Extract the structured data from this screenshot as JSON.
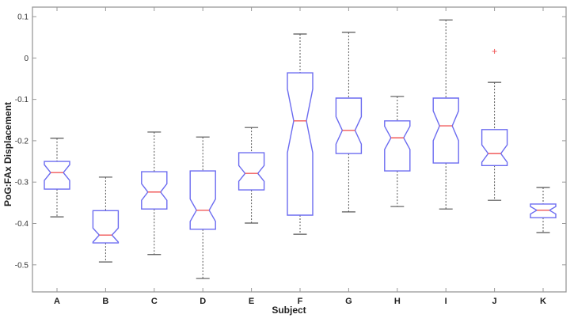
{
  "chart_data": {
    "type": "box",
    "subtype": "notched-boxplot",
    "title": "",
    "xlabel": "Subject",
    "ylabel": "PoG:FAx Displacement",
    "ylim": [
      -0.57,
      0.12
    ],
    "yticks": [
      0.1,
      0,
      -0.1,
      -0.2,
      -0.3,
      -0.4,
      -0.5
    ],
    "ytick_labels": [
      "0.1",
      "0",
      "-0.1",
      "-0.2",
      "-0.3",
      "-0.4",
      "-0.5"
    ],
    "categories": [
      "A",
      "B",
      "C",
      "D",
      "E",
      "F",
      "G",
      "H",
      "I",
      "J",
      "K"
    ],
    "grid": false,
    "legend": null,
    "colors": {
      "box": "#6b6bf0",
      "median": "#f05a5a",
      "whisker": "#555555",
      "outlier": "#f05a5a",
      "axis": "#999999"
    },
    "boxes": [
      {
        "label": "A",
        "whisker_high": -0.194,
        "q3": -0.25,
        "median": -0.277,
        "q1": -0.317,
        "whisker_low": -0.384,
        "notch": 0.019,
        "outliers": []
      },
      {
        "label": "B",
        "whisker_high": -0.288,
        "q3": -0.369,
        "median": -0.428,
        "q1": -0.447,
        "whisker_low": -0.493,
        "notch": 0.017,
        "outliers": []
      },
      {
        "label": "C",
        "whisker_high": -0.179,
        "q3": -0.275,
        "median": -0.324,
        "q1": -0.365,
        "whisker_low": -0.475,
        "notch": 0.02,
        "outliers": []
      },
      {
        "label": "D",
        "whisker_high": -0.191,
        "q3": -0.273,
        "median": -0.368,
        "q1": -0.414,
        "whisker_low": -0.533,
        "notch": 0.027,
        "outliers": []
      },
      {
        "label": "E",
        "whisker_high": -0.168,
        "q3": -0.229,
        "median": -0.279,
        "q1": -0.319,
        "whisker_low": -0.399,
        "notch": 0.019,
        "outliers": []
      },
      {
        "label": "F",
        "whisker_high": 0.058,
        "q3": -0.036,
        "median": -0.152,
        "q1": -0.38,
        "whisker_low": -0.426,
        "notch": 0.077,
        "outliers": []
      },
      {
        "label": "G",
        "whisker_high": 0.062,
        "q3": -0.097,
        "median": -0.175,
        "q1": -0.231,
        "whisker_low": -0.372,
        "notch": 0.033,
        "outliers": []
      },
      {
        "label": "H",
        "whisker_high": -0.093,
        "q3": -0.152,
        "median": -0.193,
        "q1": -0.273,
        "whisker_low": -0.359,
        "notch": 0.028,
        "outliers": []
      },
      {
        "label": "I",
        "whisker_high": 0.092,
        "q3": -0.097,
        "median": -0.164,
        "q1": -0.254,
        "whisker_low": -0.365,
        "notch": 0.036,
        "outliers": []
      },
      {
        "label": "J",
        "whisker_high": -0.059,
        "q3": -0.173,
        "median": -0.231,
        "q1": -0.26,
        "whisker_low": -0.344,
        "notch": 0.021,
        "outliers": [
          0.016
        ]
      },
      {
        "label": "K",
        "whisker_high": -0.313,
        "q3": -0.353,
        "median": -0.368,
        "q1": -0.386,
        "whisker_low": -0.422,
        "notch": 0.009,
        "outliers": []
      }
    ]
  }
}
